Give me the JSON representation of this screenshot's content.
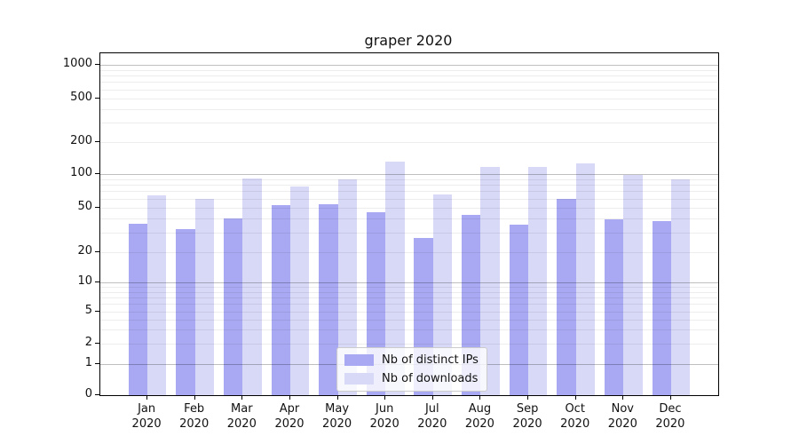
{
  "title": "graper 2020",
  "chart_data": {
    "type": "bar",
    "title": "graper 2020",
    "categories": [
      "Jan",
      "Feb",
      "Mar",
      "Apr",
      "May",
      "Jun",
      "Jul",
      "Aug",
      "Sep",
      "Oct",
      "Nov",
      "Dec"
    ],
    "category_year": "2020",
    "series": [
      {
        "name": "Nb of distinct IPs",
        "color": "#a8a8f3",
        "values": [
          36,
          32,
          40,
          52,
          53,
          45,
          27,
          43,
          35,
          60,
          39,
          38
        ]
      },
      {
        "name": "Nb of downloads",
        "color": "#d8d8f7",
        "values": [
          64,
          60,
          91,
          77,
          90,
          130,
          66,
          116,
          117,
          125,
          99,
          90
        ]
      }
    ],
    "yscale": "symlog",
    "yticks": [
      0,
      1,
      2,
      5,
      10,
      20,
      50,
      100,
      200,
      500,
      1000
    ],
    "ylim": [
      0,
      1500
    ],
    "grid": "both",
    "legend_position": "lower-center"
  },
  "legend": {
    "items": [
      {
        "label": "Nb of distinct IPs",
        "color": "#a8a8f3"
      },
      {
        "label": "Nb of downloads",
        "color": "#d8d8f7"
      }
    ]
  }
}
